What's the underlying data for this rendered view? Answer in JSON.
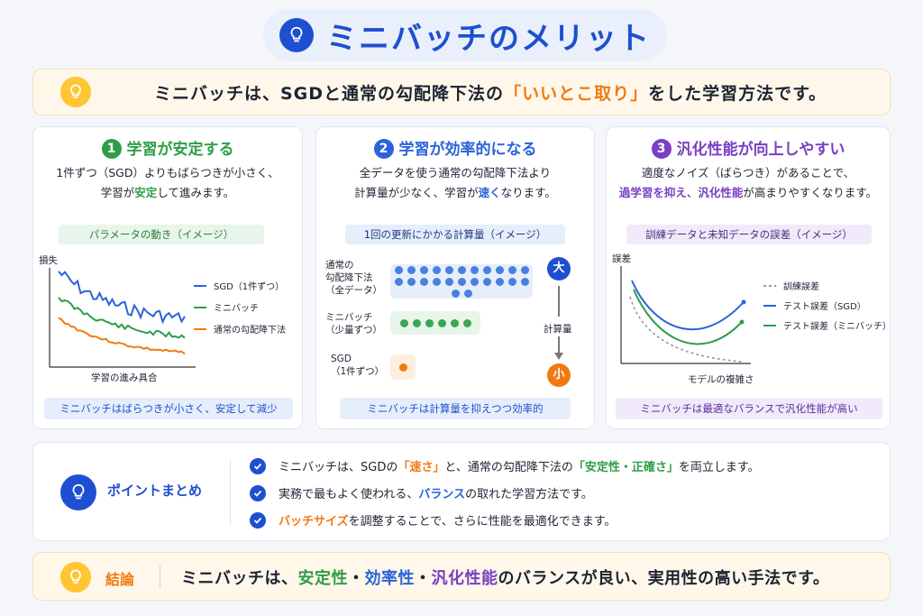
{
  "title": "ミニバッチのメリット",
  "intro": {
    "before": "ミニバッチは、SGDと通常の勾配降下法の",
    "highlight": "「いいとこ取り」",
    "after": "をした学習方法です。"
  },
  "panels": [
    {
      "num": "1",
      "title": "学習が安定する",
      "desc_line1": "1件ずつ（SGD）よりもばらつきが小さく、",
      "desc_line2_before": "学習が",
      "desc_line2_hl": "安定",
      "desc_line2_after": "して進みます。",
      "pill": "パラメータの動き（イメージ）",
      "footer": "ミニバッチはばらつきが小さく、安定して減少"
    },
    {
      "num": "2",
      "title": "学習が効率的になる",
      "desc_line1": "全データを使う通常の勾配降下法より",
      "desc_line2_before": "計算量が少なく、学習が",
      "desc_line2_hl": "速く",
      "desc_line2_after": "なります。",
      "pill": "1回の更新にかかる計算量（イメージ）",
      "footer": "ミニバッチは計算量を抑えつつ効率的"
    },
    {
      "num": "3",
      "title": "汎化性能が向上しやすい",
      "desc_line1": "適度なノイズ（ばらつき）があることで、",
      "desc_line2_hl1": "過学習を抑え",
      "desc_line2_mid": "、",
      "desc_line2_hl2": "汎化性能",
      "desc_line2_after": "が高まりやすくなります。",
      "pill": "訓練データと未知データの誤差（イメージ）",
      "footer": "ミニバッチは最適なバランスで汎化性能が高い"
    }
  ],
  "chart1": {
    "ylabel": "損失",
    "xlabel": "学習の進み具合",
    "legend": [
      "SGD（1件ずつ）",
      "ミニバッチ",
      "通常の勾配降下法"
    ],
    "colors": [
      "#2b63d9",
      "#2e9e48",
      "#f07a12"
    ]
  },
  "compute": {
    "rows": [
      {
        "label": [
          "通常の",
          "勾配降下法",
          "（全データ）"
        ],
        "dots": 24,
        "color": "#4a7fe0",
        "bg": "#e6eefb"
      },
      {
        "label": [
          "ミニバッチ",
          "（少量ずつ）"
        ],
        "dots": 6,
        "color": "#3aa654",
        "bg": "#e8f5ea"
      },
      {
        "label": [
          "SGD",
          "（1件ずつ）"
        ],
        "dots": 1,
        "color": "#f07a12",
        "bg": "#fdeedd"
      }
    ],
    "big": "大",
    "small": "小",
    "axis_label": "計算量"
  },
  "chart3": {
    "ylabel": "誤差",
    "xlabel": "モデルの複雑さ",
    "legend": [
      "訓練誤差",
      "テスト誤差（SGD）",
      "テスト誤差（ミニバッチ）"
    ],
    "colors": [
      "#999999",
      "#2b63d9",
      "#2e9e48"
    ]
  },
  "summary": {
    "title": "ポイントまとめ",
    "item1": {
      "a": "ミニバッチは、SGDの",
      "b": "「速さ」",
      "c": "と、通常の勾配降下法の",
      "d": "「安定性・正確さ」",
      "e": "を両立します。"
    },
    "item2": {
      "a": "実務で最もよく使われる、",
      "b": "バランス",
      "c": "の取れた学習方法です。"
    },
    "item3": {
      "a": "バッチサイズ",
      "b": "を調整することで、さらに性能を最適化できます。"
    }
  },
  "conclusion": {
    "label": "結論",
    "a": "ミニバッチは、",
    "b": "安定性",
    "c": "・",
    "d": "効率性",
    "e": "・",
    "f": "汎化性能",
    "g": "のバランスが良い、実用性の高い手法です。"
  }
}
